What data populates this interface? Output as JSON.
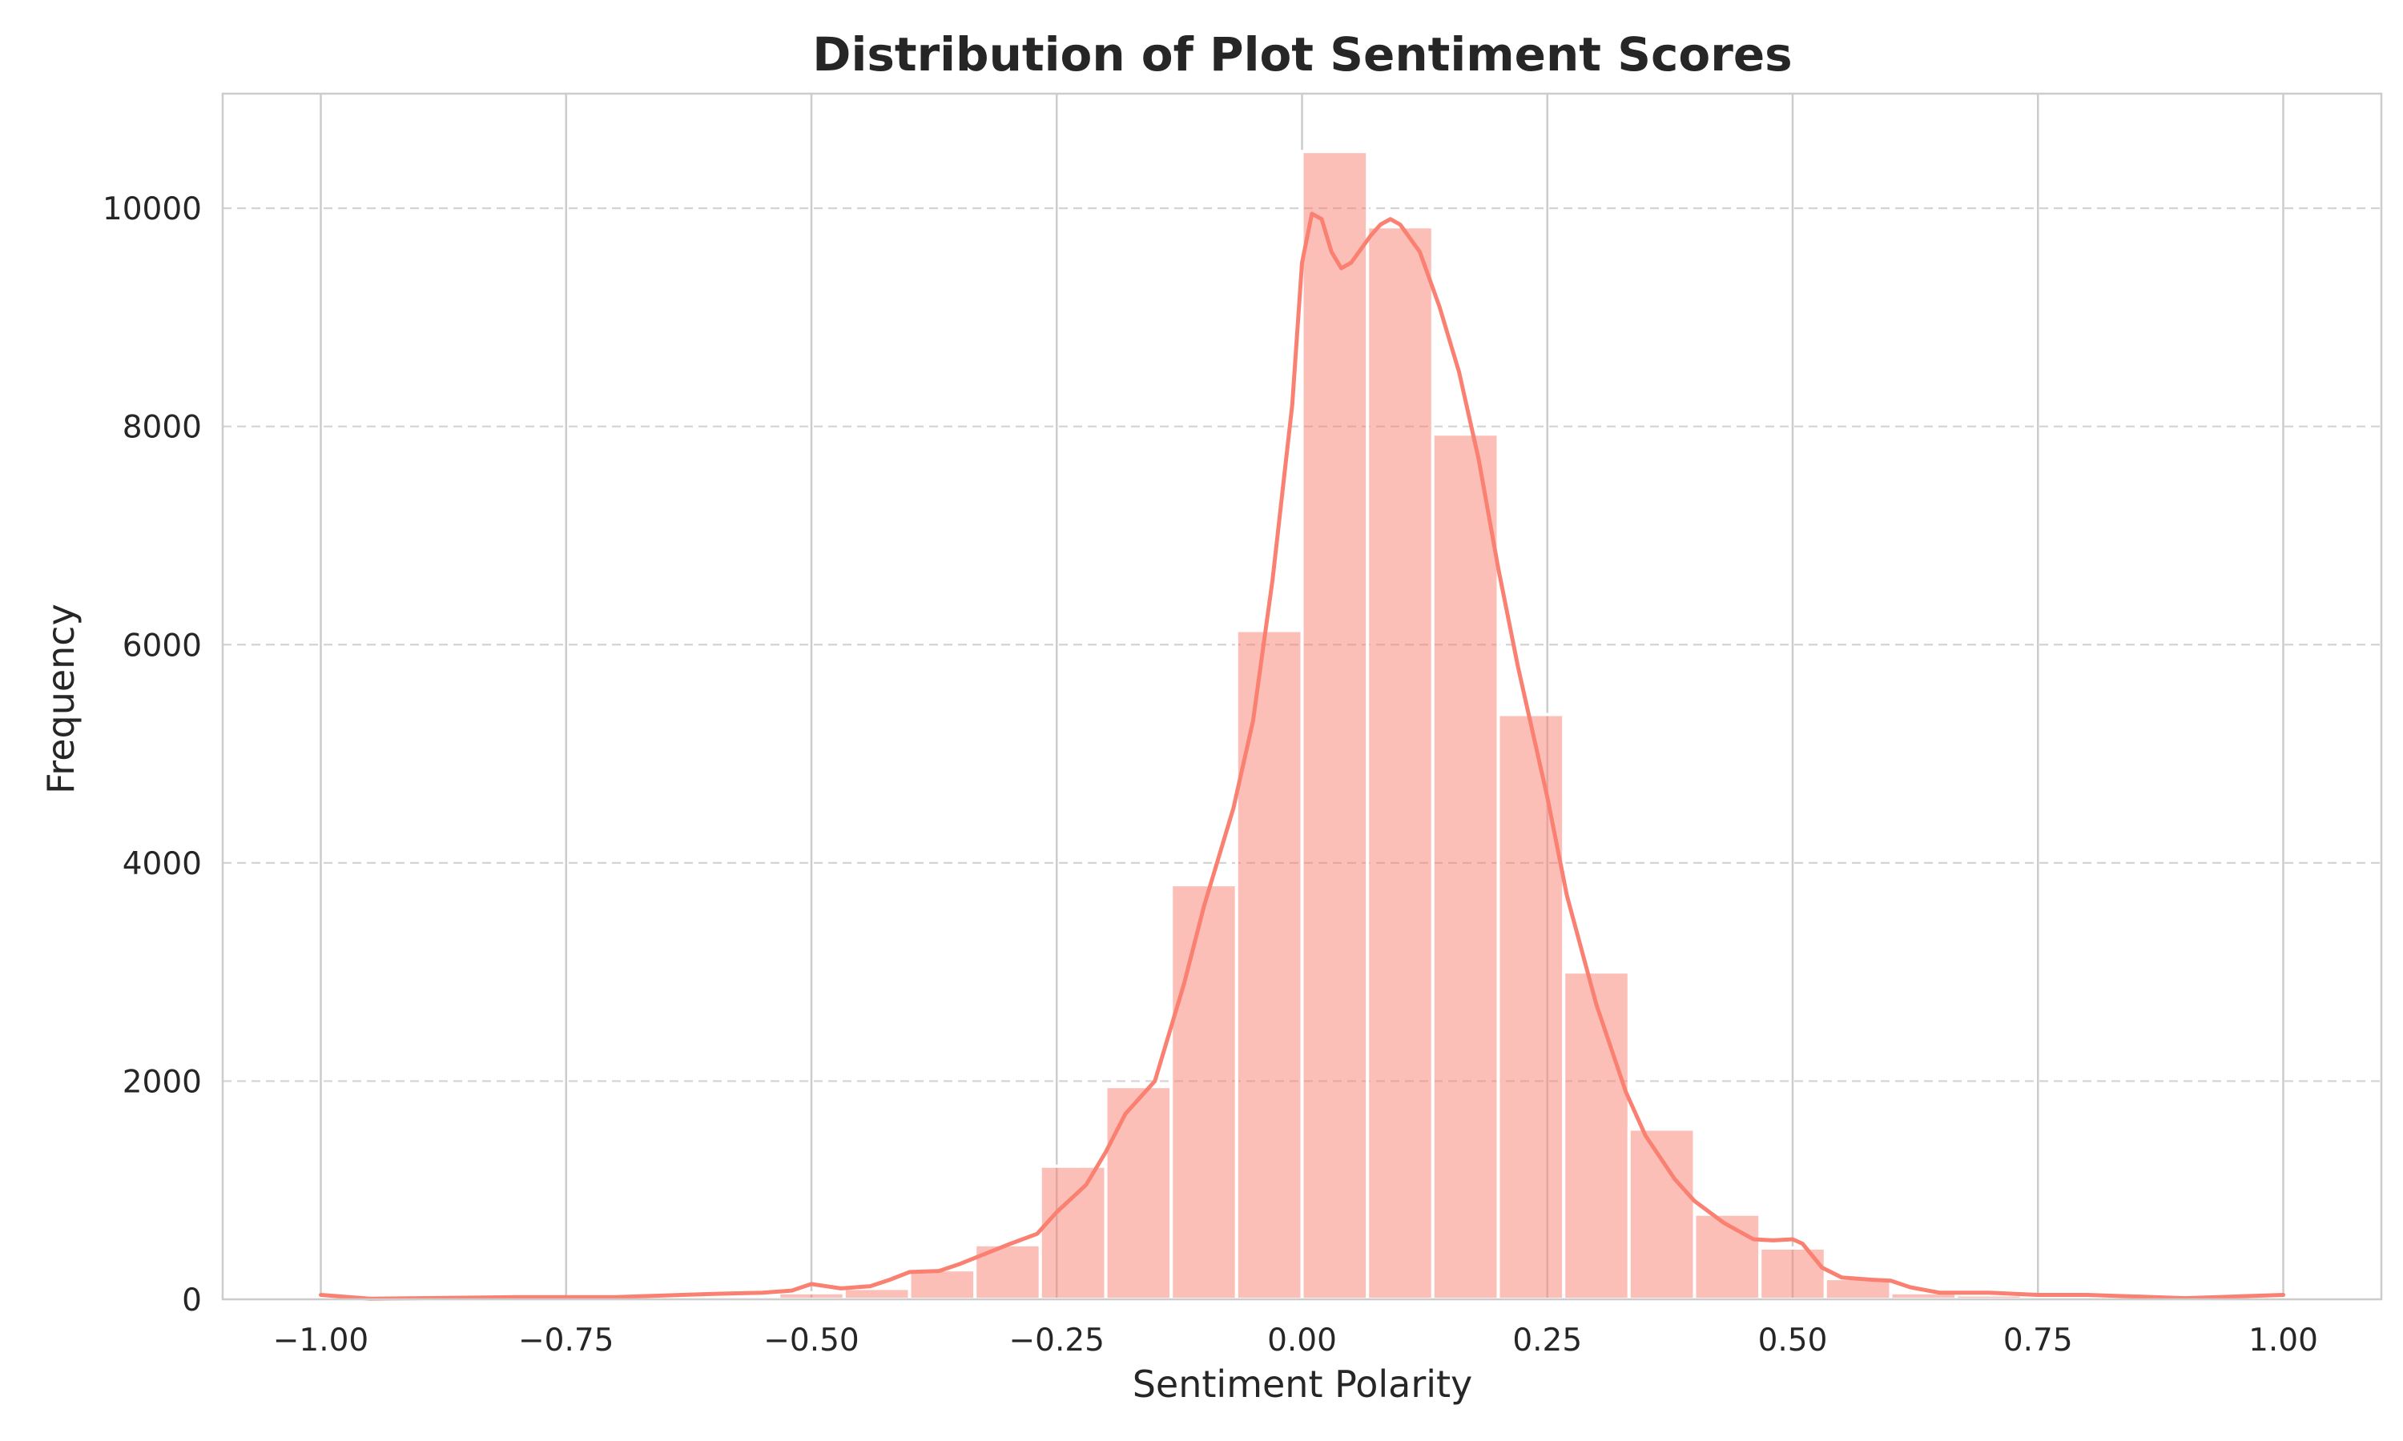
{
  "chart_data": {
    "type": "bar",
    "title": "Distribution of Plot Sentiment Scores",
    "xlabel": "Sentiment Polarity",
    "ylabel": "Frequency",
    "xlim": [
      -1.1,
      1.1
    ],
    "ylim": [
      0,
      11050
    ],
    "xticks": [
      -1.0,
      -0.75,
      -0.5,
      -0.25,
      0.0,
      0.25,
      0.5,
      0.75,
      1.0
    ],
    "xtick_labels": [
      "−1.00",
      "−0.75",
      "−0.50",
      "−0.25",
      "0.00",
      "0.25",
      "0.50",
      "0.75",
      "1.00"
    ],
    "yticks": [
      0,
      2000,
      4000,
      6000,
      8000,
      10000
    ],
    "ytick_labels": [
      "0",
      "2000",
      "4000",
      "6000",
      "8000",
      "10000"
    ],
    "grid": {
      "x": "solid",
      "y": "dashed"
    },
    "bin_edges": [
      -1.0,
      -0.9333,
      -0.8667,
      -0.8,
      -0.7333,
      -0.6667,
      -0.6,
      -0.5333,
      -0.4667,
      -0.4,
      -0.3333,
      -0.2667,
      -0.2,
      -0.1333,
      -0.0667,
      0.0,
      0.0667,
      0.1333,
      0.2,
      0.2667,
      0.3333,
      0.4,
      0.4667,
      0.5333,
      0.6,
      0.6667,
      0.7333,
      0.8,
      0.8667,
      0.9333,
      1.0
    ],
    "values": [
      20,
      5,
      5,
      10,
      10,
      10,
      30,
      60,
      100,
      270,
      500,
      1220,
      1950,
      3800,
      6130,
      10520,
      9830,
      7930,
      5360,
      3000,
      1560,
      780,
      470,
      190,
      60,
      40,
      30,
      20,
      10,
      20
    ],
    "bar_color": "#fa8072",
    "kde": {
      "x": [
        -1.0,
        -0.95,
        -0.9,
        -0.8,
        -0.7,
        -0.6,
        -0.55,
        -0.52,
        -0.5,
        -0.47,
        -0.44,
        -0.42,
        -0.4,
        -0.37,
        -0.35,
        -0.3,
        -0.27,
        -0.25,
        -0.22,
        -0.2,
        -0.18,
        -0.15,
        -0.12,
        -0.1,
        -0.07,
        -0.05,
        -0.03,
        -0.01,
        0.0,
        0.01,
        0.02,
        0.03,
        0.04,
        0.05,
        0.07,
        0.08,
        0.09,
        0.1,
        0.12,
        0.14,
        0.16,
        0.18,
        0.2,
        0.22,
        0.25,
        0.27,
        0.3,
        0.33,
        0.35,
        0.38,
        0.4,
        0.43,
        0.46,
        0.48,
        0.5,
        0.51,
        0.53,
        0.55,
        0.58,
        0.6,
        0.62,
        0.65,
        0.7,
        0.75,
        0.8,
        0.9,
        1.0
      ],
      "y": [
        40,
        5,
        10,
        20,
        20,
        50,
        60,
        80,
        140,
        100,
        120,
        180,
        250,
        260,
        320,
        500,
        600,
        800,
        1050,
        1350,
        1700,
        2000,
        2900,
        3600,
        4500,
        5300,
        6600,
        8200,
        9500,
        9950,
        9900,
        9600,
        9450,
        9500,
        9750,
        9850,
        9900,
        9850,
        9600,
        9100,
        8500,
        7700,
        6700,
        5800,
        4600,
        3700,
        2700,
        1900,
        1500,
        1100,
        900,
        700,
        550,
        540,
        550,
        510,
        290,
        200,
        180,
        170,
        110,
        60,
        60,
        40,
        40,
        10,
        40
      ]
    }
  }
}
